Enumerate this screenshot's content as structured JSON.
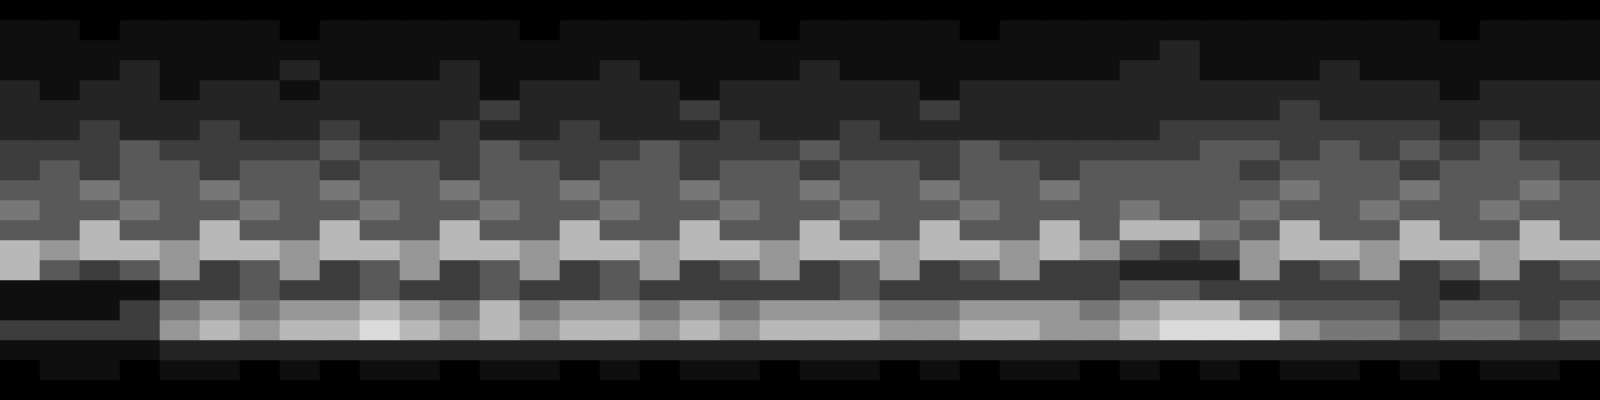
{
  "chart_data": {
    "type": "heatmap",
    "color": "#ffffff",
    "zlim": [
      0,
      9
    ],
    "tick_labels": false,
    "grid": false,
    "cells": [
      [
        0,
        0,
        0,
        0,
        0,
        0,
        0,
        0,
        0,
        0,
        0,
        0,
        0,
        0,
        0,
        0,
        0,
        0,
        0,
        0,
        0,
        0,
        0,
        0,
        0,
        0,
        0,
        0,
        0,
        0,
        0,
        0,
        0,
        0,
        0,
        0,
        0,
        0,
        0,
        0
      ],
      [
        1,
        1,
        0,
        1,
        1,
        1,
        1,
        0,
        1,
        1,
        1,
        1,
        1,
        0,
        1,
        1,
        1,
        1,
        1,
        0,
        1,
        1,
        1,
        1,
        0,
        1,
        1,
        1,
        1,
        1,
        1,
        1,
        1,
        1,
        1,
        1,
        0,
        1,
        1,
        1
      ],
      [
        1,
        1,
        1,
        1,
        1,
        1,
        1,
        1,
        1,
        1,
        1,
        1,
        1,
        1,
        1,
        1,
        1,
        1,
        1,
        1,
        1,
        1,
        1,
        1,
        1,
        1,
        1,
        1,
        1,
        2,
        1,
        1,
        1,
        1,
        1,
        1,
        1,
        1,
        1,
        1
      ],
      [
        1,
        1,
        1,
        2,
        1,
        1,
        1,
        2,
        1,
        1,
        1,
        2,
        1,
        1,
        1,
        2,
        1,
        1,
        1,
        1,
        2,
        1,
        1,
        1,
        1,
        1,
        1,
        1,
        2,
        2,
        1,
        1,
        1,
        2,
        1,
        1,
        1,
        1,
        1,
        1
      ],
      [
        2,
        1,
        2,
        2,
        1,
        2,
        2,
        1,
        2,
        2,
        2,
        2,
        1,
        2,
        2,
        2,
        2,
        1,
        2,
        2,
        2,
        2,
        2,
        1,
        2,
        2,
        2,
        2,
        2,
        2,
        2,
        2,
        2,
        2,
        2,
        2,
        1,
        2,
        2,
        2
      ],
      [
        2,
        2,
        2,
        2,
        2,
        2,
        2,
        2,
        2,
        2,
        2,
        2,
        3,
        2,
        2,
        2,
        2,
        3,
        2,
        2,
        2,
        2,
        2,
        3,
        2,
        2,
        2,
        2,
        2,
        2,
        2,
        2,
        3,
        2,
        2,
        2,
        2,
        2,
        2,
        2
      ],
      [
        2,
        2,
        3,
        2,
        2,
        3,
        2,
        2,
        3,
        2,
        2,
        3,
        2,
        2,
        3,
        2,
        2,
        2,
        3,
        2,
        2,
        3,
        2,
        2,
        2,
        2,
        2,
        2,
        2,
        3,
        3,
        3,
        3,
        3,
        3,
        3,
        2,
        3,
        2,
        2
      ],
      [
        3,
        3,
        3,
        4,
        3,
        3,
        3,
        3,
        4,
        3,
        3,
        3,
        4,
        3,
        3,
        3,
        4,
        3,
        3,
        3,
        4,
        3,
        3,
        3,
        4,
        3,
        3,
        3,
        3,
        3,
        4,
        4,
        3,
        4,
        3,
        4,
        3,
        4,
        3,
        3
      ],
      [
        3,
        4,
        3,
        4,
        4,
        3,
        4,
        4,
        3,
        4,
        4,
        3,
        4,
        4,
        3,
        4,
        4,
        3,
        4,
        4,
        3,
        4,
        4,
        3,
        4,
        4,
        3,
        4,
        4,
        4,
        4,
        3,
        4,
        4,
        4,
        3,
        4,
        4,
        4,
        3
      ],
      [
        4,
        4,
        5,
        4,
        4,
        5,
        4,
        4,
        5,
        4,
        4,
        5,
        4,
        4,
        5,
        4,
        4,
        5,
        4,
        4,
        5,
        4,
        4,
        5,
        4,
        4,
        5,
        4,
        4,
        4,
        4,
        4,
        5,
        4,
        4,
        5,
        4,
        4,
        5,
        4
      ],
      [
        5,
        4,
        4,
        5,
        4,
        4,
        5,
        4,
        4,
        5,
        4,
        4,
        5,
        4,
        4,
        5,
        4,
        4,
        5,
        4,
        4,
        5,
        4,
        4,
        5,
        4,
        4,
        4,
        5,
        4,
        4,
        5,
        4,
        4,
        5,
        4,
        4,
        5,
        4,
        4
      ],
      [
        4,
        4,
        7,
        4,
        4,
        7,
        4,
        4,
        7,
        4,
        4,
        7,
        4,
        4,
        7,
        4,
        4,
        7,
        4,
        4,
        7,
        4,
        4,
        7,
        4,
        4,
        7,
        4,
        7,
        7,
        5,
        4,
        7,
        4,
        4,
        7,
        4,
        4,
        7,
        4
      ],
      [
        7,
        6,
        7,
        7,
        6,
        7,
        7,
        6,
        7,
        7,
        6,
        7,
        7,
        6,
        7,
        7,
        6,
        7,
        7,
        6,
        7,
        7,
        6,
        7,
        7,
        6,
        7,
        6,
        4,
        3,
        4,
        6,
        7,
        7,
        6,
        7,
        7,
        6,
        7,
        7
      ],
      [
        7,
        4,
        3,
        4,
        6,
        3,
        4,
        6,
        3,
        4,
        6,
        3,
        4,
        6,
        3,
        4,
        6,
        3,
        4,
        6,
        3,
        4,
        6,
        3,
        4,
        6,
        3,
        3,
        2,
        2,
        2,
        6,
        3,
        4,
        6,
        3,
        4,
        6,
        3,
        4
      ],
      [
        1,
        1,
        1,
        1,
        3,
        3,
        4,
        3,
        3,
        4,
        3,
        3,
        4,
        3,
        3,
        4,
        3,
        3,
        3,
        3,
        3,
        4,
        3,
        3,
        3,
        3,
        3,
        3,
        4,
        4,
        3,
        3,
        3,
        3,
        3,
        3,
        2,
        3,
        3,
        3
      ],
      [
        1,
        1,
        1,
        3,
        5,
        6,
        5,
        6,
        6,
        7,
        6,
        5,
        7,
        5,
        6,
        6,
        5,
        6,
        5,
        6,
        6,
        6,
        5,
        5,
        6,
        6,
        6,
        5,
        6,
        7,
        7,
        5,
        4,
        4,
        4,
        3,
        4,
        4,
        3,
        4
      ],
      [
        3,
        3,
        3,
        3,
        6,
        7,
        6,
        7,
        7,
        8,
        7,
        6,
        7,
        6,
        7,
        7,
        6,
        7,
        6,
        7,
        7,
        7,
        6,
        6,
        7,
        7,
        6,
        6,
        7,
        8,
        8,
        8,
        6,
        5,
        5,
        4,
        5,
        5,
        4,
        5
      ],
      [
        1,
        1,
        1,
        1,
        2,
        2,
        2,
        2,
        2,
        2,
        2,
        2,
        2,
        2,
        2,
        2,
        2,
        2,
        2,
        2,
        2,
        2,
        2,
        2,
        2,
        2,
        2,
        2,
        2,
        2,
        2,
        2,
        2,
        2,
        2,
        2,
        2,
        2,
        2,
        2
      ],
      [
        0,
        1,
        1,
        0,
        1,
        1,
        0,
        1,
        0,
        1,
        1,
        0,
        1,
        1,
        0,
        1,
        0,
        1,
        1,
        0,
        1,
        1,
        0,
        1,
        0,
        1,
        1,
        0,
        1,
        0,
        1,
        0,
        1,
        1,
        0,
        1,
        0,
        1,
        1,
        0
      ],
      [
        0,
        0,
        0,
        0,
        0,
        0,
        0,
        0,
        0,
        0,
        0,
        0,
        0,
        0,
        0,
        0,
        0,
        0,
        0,
        0,
        0,
        0,
        0,
        0,
        0,
        0,
        0,
        0,
        0,
        0,
        0,
        0,
        0,
        0,
        0,
        0,
        0,
        0,
        0,
        0
      ]
    ]
  }
}
